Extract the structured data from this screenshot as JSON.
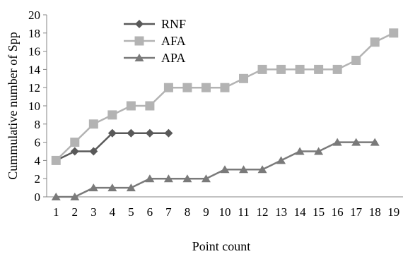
{
  "chart_data": {
    "type": "line",
    "title": "",
    "xlabel": "Point count",
    "ylabel": "Cummulative number of Spp",
    "x": [
      1,
      2,
      3,
      4,
      5,
      6,
      7,
      8,
      9,
      10,
      11,
      12,
      13,
      14,
      15,
      16,
      17,
      18,
      19
    ],
    "ylim": [
      0,
      20
    ],
    "yticks": [
      0,
      2,
      4,
      6,
      8,
      10,
      12,
      14,
      16,
      18,
      20
    ],
    "grid": false,
    "legend_position": "top-left",
    "series": [
      {
        "name": "RNF",
        "marker": "diamond",
        "color": "#595959",
        "x": [
          1,
          2,
          3,
          4,
          5,
          6,
          7
        ],
        "values": [
          4,
          5,
          5,
          7,
          7,
          7,
          7
        ]
      },
      {
        "name": "AFA",
        "marker": "square",
        "color": "#b3b3b3",
        "x": [
          1,
          2,
          3,
          4,
          5,
          6,
          7,
          8,
          9,
          10,
          11,
          12,
          13,
          14,
          15,
          16,
          17,
          18,
          19
        ],
        "values": [
          4,
          6,
          8,
          9,
          10,
          10,
          12,
          12,
          12,
          12,
          13,
          14,
          14,
          14,
          14,
          14,
          15,
          17,
          18
        ]
      },
      {
        "name": "APA",
        "marker": "triangle",
        "color": "#7a7a7a",
        "x": [
          1,
          2,
          3,
          4,
          5,
          6,
          7,
          8,
          9,
          10,
          11,
          12,
          13,
          14,
          15,
          16,
          17,
          18
        ],
        "values": [
          0,
          0,
          1,
          1,
          1,
          2,
          2,
          2,
          2,
          3,
          3,
          3,
          4,
          5,
          5,
          6,
          6,
          6
        ]
      }
    ]
  }
}
